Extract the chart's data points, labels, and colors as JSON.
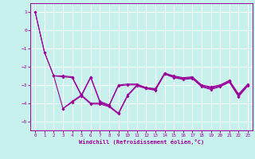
{
  "xlabel": "Windchill (Refroidissement éolien,°C)",
  "background_color": "#c8f0ec",
  "line_color": "#990099",
  "grid_color": "#ffffff",
  "ylim": [
    -5.5,
    1.5
  ],
  "xlim": [
    -0.5,
    23.5
  ],
  "yticks": [
    1,
    0,
    -1,
    -2,
    -3,
    -4,
    -5
  ],
  "xticks": [
    0,
    1,
    2,
    3,
    4,
    5,
    6,
    7,
    8,
    9,
    10,
    11,
    12,
    13,
    14,
    15,
    16,
    17,
    18,
    19,
    20,
    21,
    22,
    23
  ],
  "lines": [
    {
      "x": [
        0,
        1,
        2,
        3,
        4,
        5,
        6,
        7,
        8,
        9,
        10,
        11,
        12,
        13,
        14,
        15,
        16,
        17,
        18,
        19,
        20,
        21,
        22,
        23
      ],
      "y": [
        1.0,
        -1.2,
        -2.5,
        -2.5,
        -2.55,
        -3.55,
        -2.55,
        -3.9,
        -4.1,
        -3.0,
        -2.95,
        -2.95,
        -3.15,
        -3.2,
        -2.35,
        -2.5,
        -2.6,
        -2.55,
        -3.0,
        -3.1,
        -3.0,
        -2.75,
        -3.5,
        -2.95
      ]
    },
    {
      "x": [
        0,
        1,
        2,
        3,
        4,
        5,
        6,
        7,
        8,
        9,
        10,
        11,
        12,
        13,
        14,
        15,
        16,
        17,
        18,
        19,
        20,
        21,
        22,
        23
      ],
      "y": [
        1.0,
        -1.2,
        -2.5,
        -2.55,
        -2.6,
        -3.6,
        -2.6,
        -3.95,
        -4.15,
        -3.05,
        -3.0,
        -3.0,
        -3.2,
        -3.25,
        -2.4,
        -2.55,
        -2.65,
        -2.6,
        -3.05,
        -3.15,
        -3.05,
        -2.8,
        -3.55,
        -3.0
      ]
    },
    {
      "x": [
        2,
        3,
        4,
        5,
        6,
        7,
        8,
        9,
        10,
        11,
        12,
        13,
        14,
        15,
        16,
        17,
        18,
        19,
        20,
        21,
        22,
        23
      ],
      "y": [
        -2.5,
        -4.3,
        -3.9,
        -3.55,
        -4.0,
        -4.0,
        -4.15,
        -4.55,
        -3.55,
        -3.0,
        -3.15,
        -3.25,
        -2.35,
        -2.55,
        -2.65,
        -2.6,
        -3.05,
        -3.2,
        -3.05,
        -2.8,
        -3.6,
        -3.0
      ]
    },
    {
      "x": [
        3,
        4,
        5,
        6,
        7,
        8,
        9,
        10,
        11,
        12,
        13,
        14,
        15,
        16,
        17,
        18,
        19,
        20,
        21,
        22,
        23
      ],
      "y": [
        -4.3,
        -3.95,
        -3.6,
        -4.05,
        -4.05,
        -4.2,
        -4.6,
        -3.6,
        -3.05,
        -3.2,
        -3.3,
        -2.4,
        -2.6,
        -2.7,
        -2.65,
        -3.1,
        -3.25,
        -3.1,
        -2.85,
        -3.65,
        -3.05
      ]
    }
  ]
}
